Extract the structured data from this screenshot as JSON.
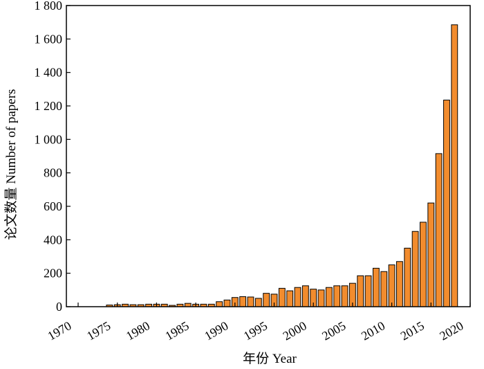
{
  "chart_data": {
    "type": "bar",
    "title": "",
    "xlabel": "年份 Year",
    "ylabel": "论文数量 Number of  papers",
    "xlim": [
      1968.5,
      2020
    ],
    "ylim": [
      0,
      1800
    ],
    "x_ticks": [
      1970,
      1975,
      1980,
      1985,
      1990,
      1995,
      2000,
      2005,
      2010,
      2015,
      2020
    ],
    "x_tick_labels": [
      "1970",
      "1975",
      "1980",
      "1985",
      "1990",
      "1995",
      "2000",
      "2005",
      "2010",
      "2015",
      "2020"
    ],
    "y_ticks": [
      0,
      200,
      400,
      600,
      800,
      1000,
      1200,
      1400,
      1600,
      1800
    ],
    "y_tick_labels": [
      "0",
      "200",
      "400",
      "600",
      "800",
      "1 000",
      "1 200",
      "1 400",
      "1 600",
      "1 800"
    ],
    "grid": false,
    "bar_color": "#F28C2E",
    "bar_edge_color": "#000000",
    "categories": [
      1974,
      1975,
      1976,
      1977,
      1978,
      1979,
      1980,
      1981,
      1982,
      1983,
      1984,
      1985,
      1986,
      1987,
      1988,
      1989,
      1990,
      1991,
      1992,
      1993,
      1994,
      1995,
      1996,
      1997,
      1998,
      1999,
      2000,
      2001,
      2002,
      2003,
      2004,
      2005,
      2006,
      2007,
      2008,
      2009,
      2010,
      2011,
      2012,
      2013,
      2014,
      2015,
      2016,
      2017,
      2018
    ],
    "values": [
      10,
      12,
      15,
      12,
      12,
      15,
      15,
      15,
      8,
      15,
      20,
      15,
      15,
      15,
      30,
      40,
      55,
      60,
      58,
      50,
      80,
      75,
      110,
      95,
      115,
      125,
      105,
      100,
      115,
      125,
      125,
      140,
      185,
      185,
      230,
      210,
      250,
      270,
      350,
      450,
      505,
      620,
      915,
      1235,
      1685
    ]
  }
}
